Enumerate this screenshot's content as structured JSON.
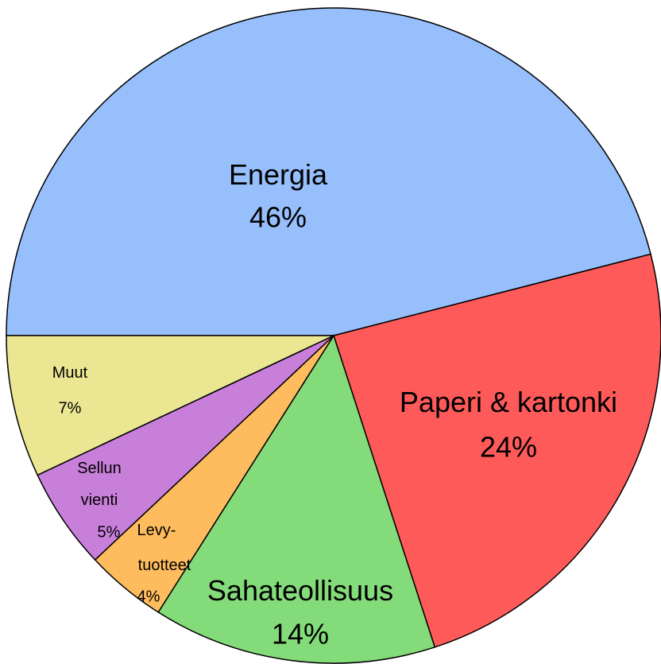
{
  "chart_data": {
    "type": "pie",
    "categories": [
      "Energia",
      "Paperi & kartonki",
      "Sahateollisuus",
      "Levy-\ntuotteet",
      "Sellun\nvienti",
      "Muut"
    ],
    "values": [
      46,
      24,
      14,
      4,
      5,
      7
    ],
    "value_labels": [
      "46%",
      "24%",
      "14%",
      "4%",
      "5%",
      "7%"
    ],
    "colors": [
      "#97bffc",
      "#ff5a5a",
      "#84db7a",
      "#ffbc5e",
      "#c77fd9",
      "#eae692"
    ]
  }
}
